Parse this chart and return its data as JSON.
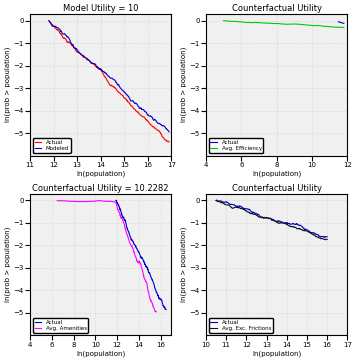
{
  "subplot1": {
    "title": "Model Utility = 10",
    "xlabel": "ln(population)",
    "ylabel": "ln(prob > population)",
    "xlim": [
      11,
      17
    ],
    "ylim": [
      -6,
      0.3
    ],
    "xticks": [
      11,
      12,
      13,
      14,
      15,
      16,
      17
    ],
    "yticks": [
      -5,
      -4,
      -3,
      -2,
      -1,
      0
    ],
    "legend": [
      "Actual",
      "Modeled"
    ],
    "actual_color": "#FF0000",
    "modeled_color": "#0000CC"
  },
  "subplot2": {
    "title": "Counterfactual Utility",
    "xlabel": "ln(population)",
    "ylabel": "ln(prob > population)",
    "xlim": [
      4,
      12
    ],
    "ylim": [
      -6,
      0.3
    ],
    "xticks": [
      4,
      6,
      8,
      10,
      12
    ],
    "yticks": [
      -5,
      -4,
      -3,
      -2,
      -1,
      0
    ],
    "legend": [
      "Actual",
      "Avg. Efficiency"
    ],
    "actual_color": "#0000CC",
    "cf_color": "#00CC00"
  },
  "subplot3": {
    "title": "Counterfactual Utility = 10.2282",
    "xlabel": "ln(population)",
    "ylabel": "ln(prob > population)",
    "xlim": [
      4,
      17
    ],
    "ylim": [
      -6,
      0.3
    ],
    "xticks": [
      4,
      6,
      8,
      10,
      12,
      14,
      16
    ],
    "yticks": [
      -5,
      -4,
      -3,
      -2,
      -1,
      0
    ],
    "legend": [
      "Actual",
      "Avg. Amenities"
    ],
    "actual_color": "#0000CC",
    "cf_color": "#FF00FF"
  },
  "subplot4": {
    "title": "Counterfactual Utility",
    "xlabel": "ln(population)",
    "ylabel": "ln(prob > population)",
    "xlim": [
      10,
      17
    ],
    "ylim": [
      -6,
      0.3
    ],
    "xticks": [
      10,
      11,
      12,
      13,
      14,
      15,
      16,
      17
    ],
    "yticks": [
      -5,
      -4,
      -3,
      -2,
      -1,
      0
    ],
    "legend": [
      "Actual",
      "Avg. Exc. Frictions"
    ],
    "actual_color": "#0000CC",
    "cf_color": "#111111"
  },
  "grid_color": "#CCCCCC",
  "bg_color": "#F0F0F0"
}
